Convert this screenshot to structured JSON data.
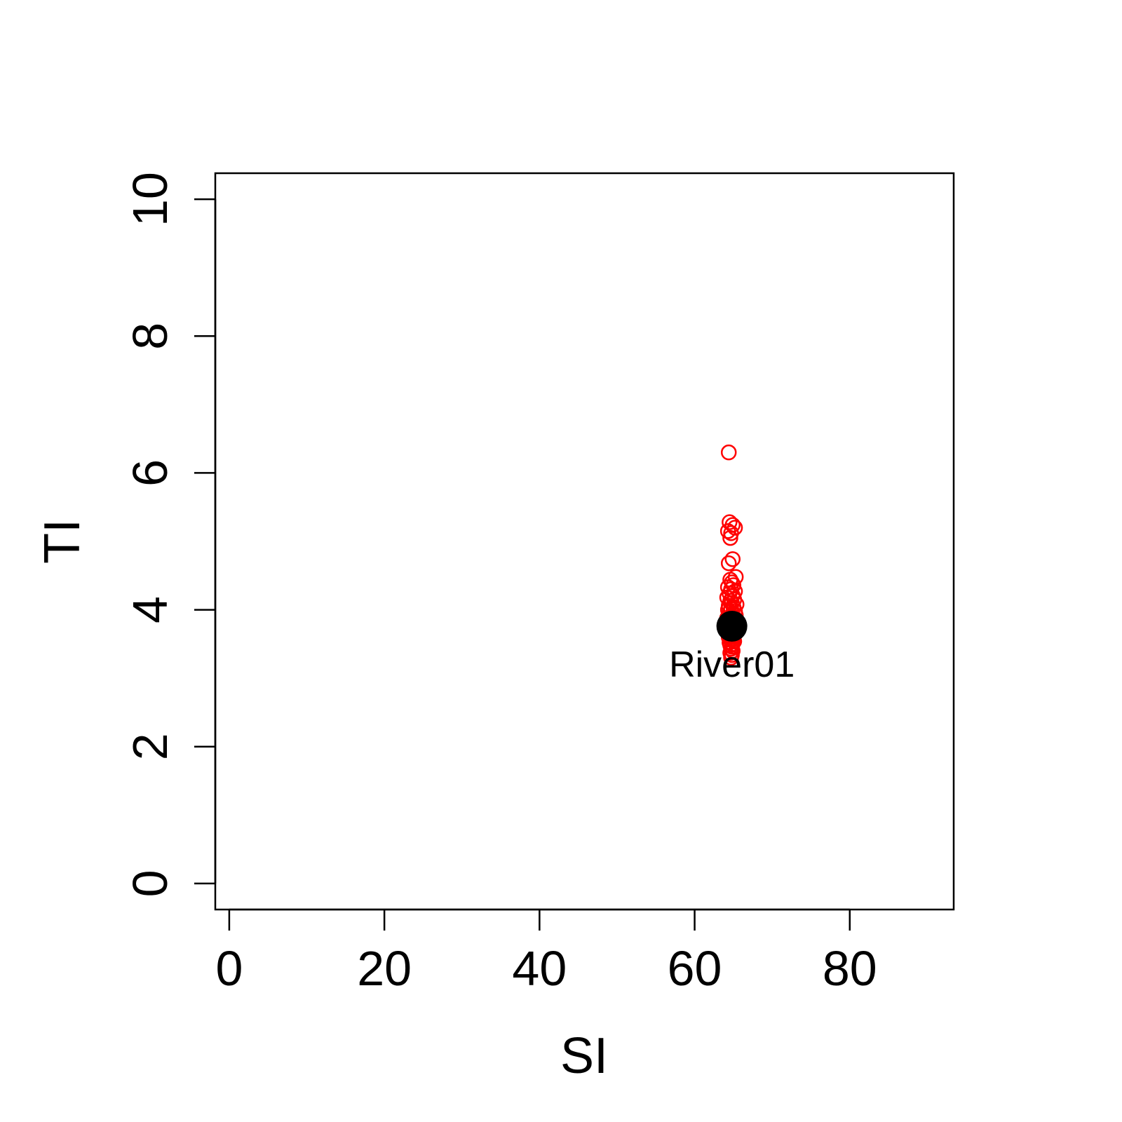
{
  "chart_data": {
    "type": "scatter",
    "title": "",
    "xlabel": "SI",
    "ylabel": "TI",
    "xlim": [
      -1.8,
      93.4
    ],
    "ylim": [
      -0.38,
      10.38
    ],
    "xticks": [
      0,
      20,
      40,
      60,
      80
    ],
    "yticks": [
      0,
      2,
      4,
      6,
      8,
      10
    ],
    "grid": false,
    "legend": "none",
    "colors": {
      "simulated": "#ff0000",
      "observed": "#000000",
      "axis": "#000000"
    },
    "series": [
      {
        "marker": "open-circle",
        "color": "#ff0000",
        "points": [
          [
            64.4,
            6.3
          ],
          [
            64.5,
            5.28
          ],
          [
            64.9,
            5.24
          ],
          [
            65.2,
            5.2
          ],
          [
            64.3,
            5.15
          ],
          [
            64.7,
            5.12
          ],
          [
            64.6,
            5.05
          ],
          [
            64.9,
            4.74
          ],
          [
            64.4,
            4.68
          ],
          [
            65.3,
            4.48
          ],
          [
            64.6,
            4.44
          ],
          [
            64.8,
            4.4
          ],
          [
            65.0,
            4.36
          ],
          [
            64.3,
            4.33
          ],
          [
            64.7,
            4.3
          ],
          [
            65.2,
            4.27
          ],
          [
            64.5,
            4.24
          ],
          [
            64.9,
            4.21
          ],
          [
            64.2,
            4.18
          ],
          [
            65.1,
            4.15
          ],
          [
            64.6,
            4.13
          ],
          [
            64.8,
            4.1
          ],
          [
            65.4,
            4.08
          ],
          [
            64.4,
            4.06
          ],
          [
            65.0,
            4.04
          ],
          [
            64.7,
            4.02
          ],
          [
            64.3,
            4.0
          ],
          [
            65.2,
            3.98
          ],
          [
            64.5,
            3.96
          ],
          [
            64.9,
            3.94
          ],
          [
            65.3,
            3.92
          ],
          [
            64.6,
            3.9
          ],
          [
            64.2,
            3.88
          ],
          [
            65.1,
            3.86
          ],
          [
            64.8,
            3.84
          ],
          [
            65.5,
            3.82
          ],
          [
            64.4,
            3.8
          ],
          [
            65.0,
            3.78
          ],
          [
            64.7,
            3.76
          ],
          [
            64.3,
            3.74
          ],
          [
            65.2,
            3.72
          ],
          [
            64.5,
            3.7
          ],
          [
            64.9,
            3.68
          ],
          [
            65.3,
            3.66
          ],
          [
            64.6,
            3.64
          ],
          [
            64.8,
            3.62
          ],
          [
            64.4,
            3.6
          ],
          [
            65.0,
            3.58
          ],
          [
            64.7,
            3.56
          ],
          [
            65.1,
            3.54
          ],
          [
            64.5,
            3.52
          ],
          [
            64.9,
            3.5
          ],
          [
            64.6,
            3.48
          ],
          [
            64.8,
            3.46
          ],
          [
            64.7,
            3.43
          ],
          [
            64.9,
            3.4
          ],
          [
            64.6,
            3.37
          ],
          [
            64.8,
            3.34
          ],
          [
            64.7,
            3.3
          ]
        ]
      },
      {
        "marker": "filled-circle",
        "color": "#000000",
        "points": [
          [
            64.8,
            3.76
          ]
        ],
        "label": "River01"
      }
    ]
  }
}
